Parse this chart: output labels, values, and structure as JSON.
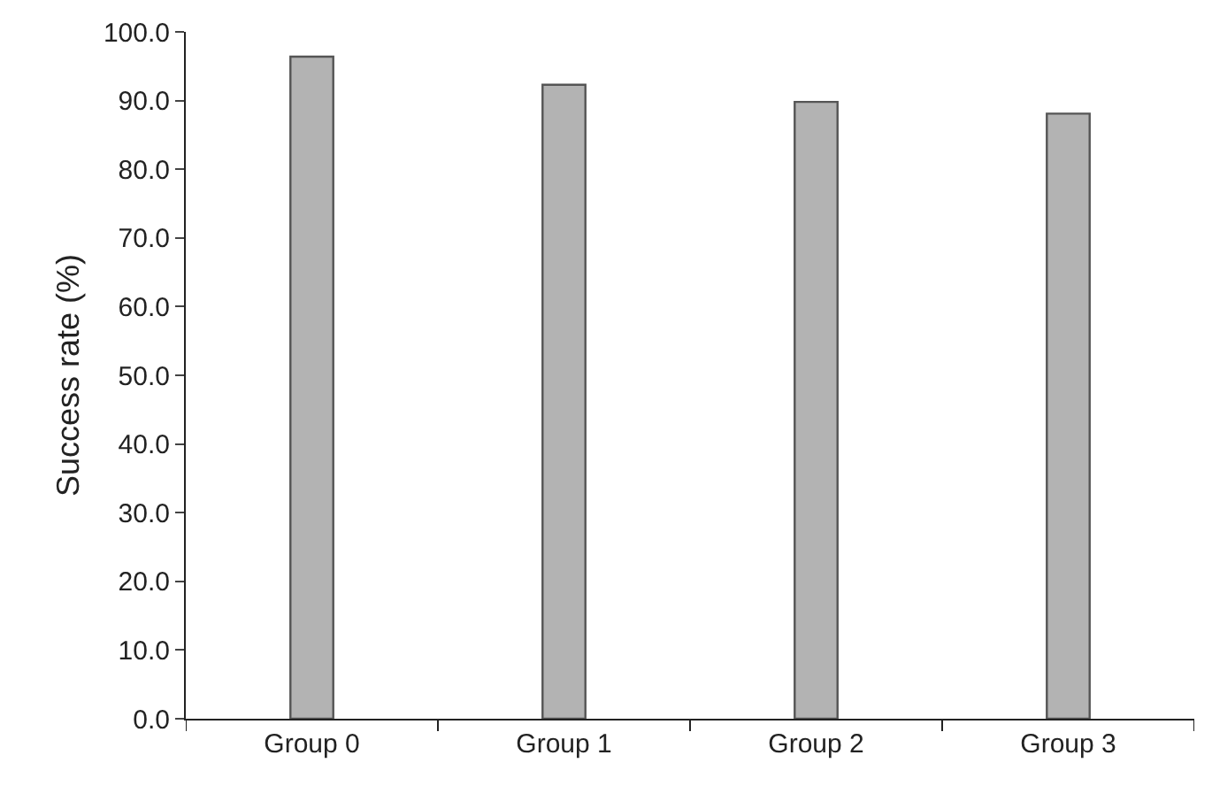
{
  "chart_data": {
    "type": "bar",
    "ylabel": "Success rate (%)",
    "categories": [
      "Group 0",
      "Group 1",
      "Group 2",
      "Group 3"
    ],
    "values": [
      96.4,
      92.3,
      89.8,
      88.1
    ],
    "color": "#b3b3b3",
    "ylim": [
      0,
      100
    ],
    "yticks": [
      {
        "value": 0,
        "label": "0.0"
      },
      {
        "value": 10,
        "label": "10.0"
      },
      {
        "value": 20,
        "label": "20.0"
      },
      {
        "value": 30,
        "label": "30.0"
      },
      {
        "value": 40,
        "label": "40.0"
      },
      {
        "value": 50,
        "label": "50.0"
      },
      {
        "value": 60,
        "label": "60.0"
      },
      {
        "value": 70,
        "label": "70.0"
      },
      {
        "value": 80,
        "label": "80.0"
      },
      {
        "value": 90,
        "label": "90.0"
      },
      {
        "value": 100,
        "label": "100.0"
      }
    ]
  }
}
